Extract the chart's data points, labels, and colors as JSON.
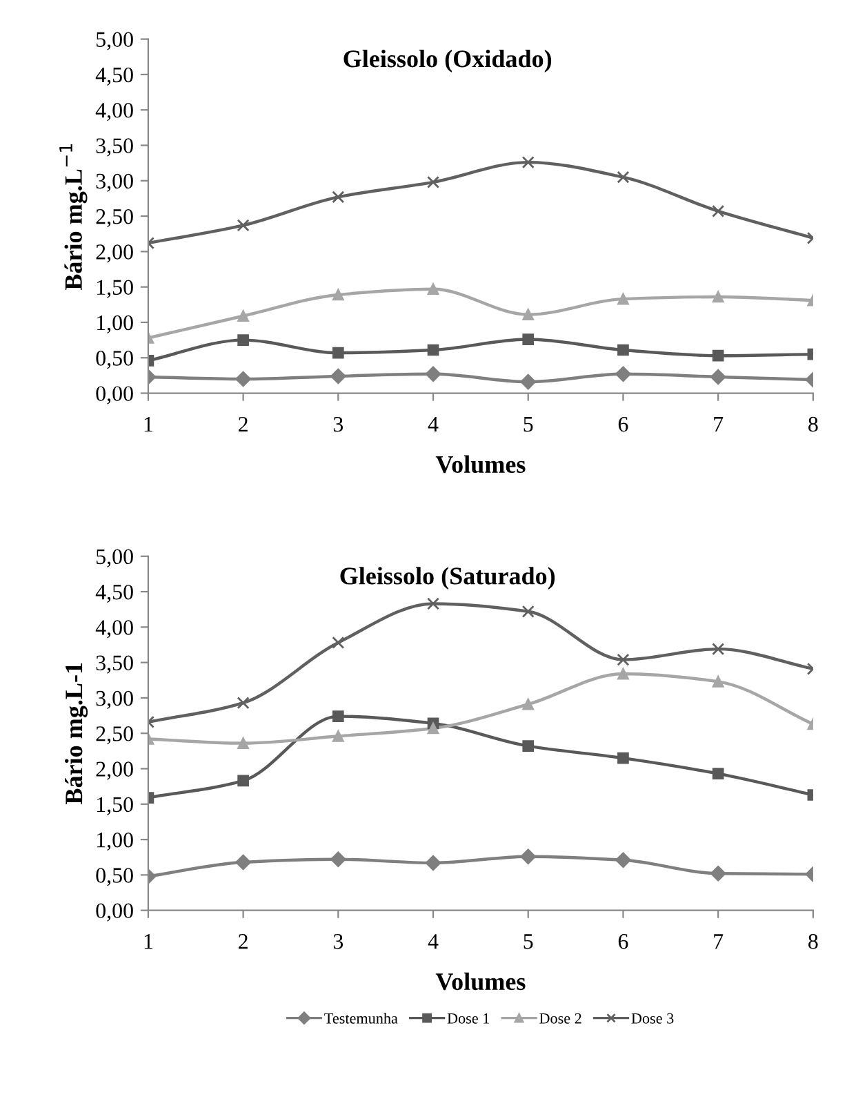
{
  "chart_data": [
    {
      "type": "line",
      "title": "Gleissolo (Oxidado)",
      "xlabel": "Volumes",
      "ylabel": "Bário mg.L$^{−1}$",
      "x": [
        1,
        2,
        3,
        4,
        5,
        6,
        7,
        8
      ],
      "xlim": [
        1,
        8
      ],
      "xticks": [
        1,
        2,
        3,
        4,
        5,
        6,
        7,
        8
      ],
      "ylim": [
        0,
        5
      ],
      "yticks": [
        {
          "value": 0,
          "label": "0,00"
        },
        {
          "value": 0.5,
          "label": "0,50"
        },
        {
          "value": 1,
          "label": "1,00"
        },
        {
          "value": 1.5,
          "label": "1,50"
        },
        {
          "value": 2,
          "label": "2,00"
        },
        {
          "value": 2.5,
          "label": "2,50"
        },
        {
          "value": 3,
          "label": "3,00"
        },
        {
          "value": 3.5,
          "label": "3,50"
        },
        {
          "value": 4,
          "label": "4,00"
        },
        {
          "value": 4.5,
          "label": "4,50"
        },
        {
          "value": 5,
          "label": "5,00"
        }
      ],
      "grid": false,
      "legend": false,
      "line_style": "solid",
      "series": [
        {
          "color": "#7f7f7f",
          "marker": "diamond",
          "values": [
            0.23,
            0.2,
            0.24,
            0.27,
            0.16,
            0.27,
            0.23,
            0.19
          ]
        },
        {
          "color": "#595959",
          "marker": "square",
          "values": [
            0.46,
            0.75,
            0.57,
            0.61,
            0.76,
            0.61,
            0.53,
            0.55
          ]
        },
        {
          "color": "#a6a6a6",
          "marker": "triangle",
          "values": [
            0.78,
            1.09,
            1.39,
            1.47,
            1.11,
            1.33,
            1.36,
            1.31
          ]
        },
        {
          "color": "#606060",
          "marker": "cross",
          "values": [
            2.12,
            2.37,
            2.77,
            2.98,
            3.26,
            3.05,
            2.57,
            2.19
          ]
        }
      ]
    },
    {
      "type": "line",
      "title": "Gleissolo (Saturado)",
      "xlabel": "Volumes",
      "ylabel": "Bário mg.L-1",
      "x": [
        1,
        2,
        3,
        4,
        5,
        6,
        7,
        8
      ],
      "xlim": [
        1,
        8
      ],
      "xticks": [
        1,
        2,
        3,
        4,
        5,
        6,
        7,
        8
      ],
      "ylim": [
        0,
        5
      ],
      "yticks": [
        {
          "value": 0,
          "label": "0,00"
        },
        {
          "value": 0.5,
          "label": "0,50"
        },
        {
          "value": 1,
          "label": "1,00"
        },
        {
          "value": 1.5,
          "label": "1,50"
        },
        {
          "value": 2,
          "label": "2,00"
        },
        {
          "value": 2.5,
          "label": "2,50"
        },
        {
          "value": 3,
          "label": "3,00"
        },
        {
          "value": 3.5,
          "label": "3,50"
        },
        {
          "value": 4,
          "label": "4,00"
        },
        {
          "value": 4.5,
          "label": "4,50"
        },
        {
          "value": 5,
          "label": "5,00"
        }
      ],
      "grid": false,
      "legend": "bottom",
      "line_style": "solid",
      "series": [
        {
          "name": "Testemunha",
          "color": "#7f7f7f",
          "marker": "diamond",
          "values": [
            0.48,
            0.68,
            0.72,
            0.67,
            0.76,
            0.71,
            0.52,
            0.51
          ]
        },
        {
          "name": "Dose 1",
          "color": "#595959",
          "marker": "square",
          "values": [
            1.59,
            1.83,
            2.74,
            2.64,
            2.32,
            2.15,
            1.93,
            1.63
          ]
        },
        {
          "name": "Dose 2",
          "color": "#a6a6a6",
          "marker": "triangle",
          "values": [
            2.42,
            2.36,
            2.46,
            2.57,
            2.91,
            3.34,
            3.23,
            2.63
          ]
        },
        {
          "name": "Dose 3",
          "color": "#606060",
          "marker": "cross",
          "values": [
            2.66,
            2.93,
            3.78,
            4.33,
            4.22,
            3.54,
            3.69,
            3.41
          ]
        }
      ]
    }
  ]
}
